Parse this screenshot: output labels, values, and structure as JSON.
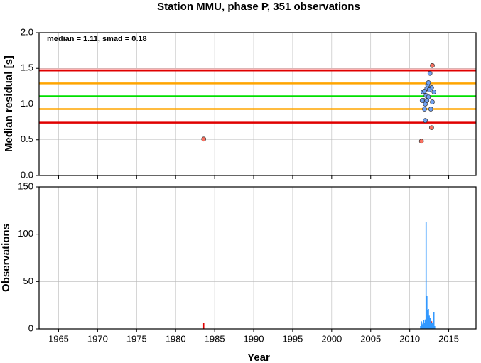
{
  "chart_data": [
    {
      "type": "scatter",
      "title": "Station MMU, phase P, 351 observations",
      "ylabel": "Median residual [s]",
      "annotation": "median = 1.11, smad = 0.18",
      "xlim": [
        1962.5,
        2018.5
      ],
      "xticks": [
        1965,
        1970,
        1975,
        1980,
        1985,
        1990,
        1995,
        2000,
        2005,
        2010,
        2015
      ],
      "ylim": [
        0,
        2
      ],
      "yticks": [
        {
          "value": 0,
          "label": "0.0"
        },
        {
          "value": 0.5,
          "label": "0.5"
        },
        {
          "value": 1,
          "label": "1.0"
        },
        {
          "value": 1.5,
          "label": "1.5"
        },
        {
          "value": 2,
          "label": "2.0"
        }
      ],
      "grid": true,
      "hlines": [
        {
          "value": 1.49,
          "color": "#ffb0b0"
        },
        {
          "value": 1.47,
          "color": "#e00000"
        },
        {
          "value": 1.29,
          "color": "#ffa500"
        },
        {
          "value": 1.11,
          "color": "#00e000"
        },
        {
          "value": 0.93,
          "color": "#ffa500"
        },
        {
          "value": 0.74,
          "color": "#e00000"
        }
      ],
      "series": [
        {
          "color": "#f87060",
          "x": [
            1983.6,
            2011.5,
            2012.8,
            2012.9
          ],
          "values": [
            0.51,
            0.48,
            0.67,
            1.54
          ]
        },
        {
          "color": "#6fa0f0",
          "x": [
            2011.7,
            2011.8,
            2011.9,
            2012.0,
            2012.0,
            2011.9,
            2012.1,
            2012.2,
            2012.3,
            2012.4,
            2012.4,
            2012.6,
            2012.7,
            2012.8,
            2012.9,
            2013.1,
            2011.6,
            2012.2,
            2012.5
          ],
          "values": [
            1.17,
            1.05,
            0.93,
            1.0,
            0.77,
            1.18,
            1.12,
            1.22,
            1.27,
            1.3,
            1.1,
            1.43,
            0.93,
            1.23,
            1.03,
            1.17,
            1.05,
            1.05,
            1.2
          ]
        }
      ]
    },
    {
      "type": "histogram",
      "ylabel": "Observations",
      "xlabel": "Year",
      "xlim": [
        1962.5,
        2018.5
      ],
      "xticks": [
        1965,
        1970,
        1975,
        1980,
        1985,
        1990,
        1995,
        2000,
        2005,
        2010,
        2015
      ],
      "ylim": [
        0,
        150
      ],
      "yticks": [
        0,
        50,
        100,
        150
      ],
      "grid": true,
      "series": [
        {
          "color": "#e00000",
          "x": [
            1983.6,
            2012.8,
            2012.9
          ],
          "values": [
            6,
            8,
            5
          ]
        },
        {
          "color": "#3399ff",
          "x": [
            2011.4,
            2011.5,
            2011.6,
            2011.7,
            2011.8,
            2011.9,
            2012.0,
            2012.1,
            2012.2,
            2012.3,
            2012.4,
            2012.5,
            2012.6,
            2012.7,
            2012.8,
            2012.9,
            2013.0,
            2013.1,
            2013.2
          ],
          "values": [
            3,
            8,
            5,
            7,
            9,
            6,
            10,
            113,
            35,
            20,
            21,
            14,
            12,
            9,
            7,
            6,
            4,
            18,
            3
          ]
        }
      ]
    }
  ]
}
